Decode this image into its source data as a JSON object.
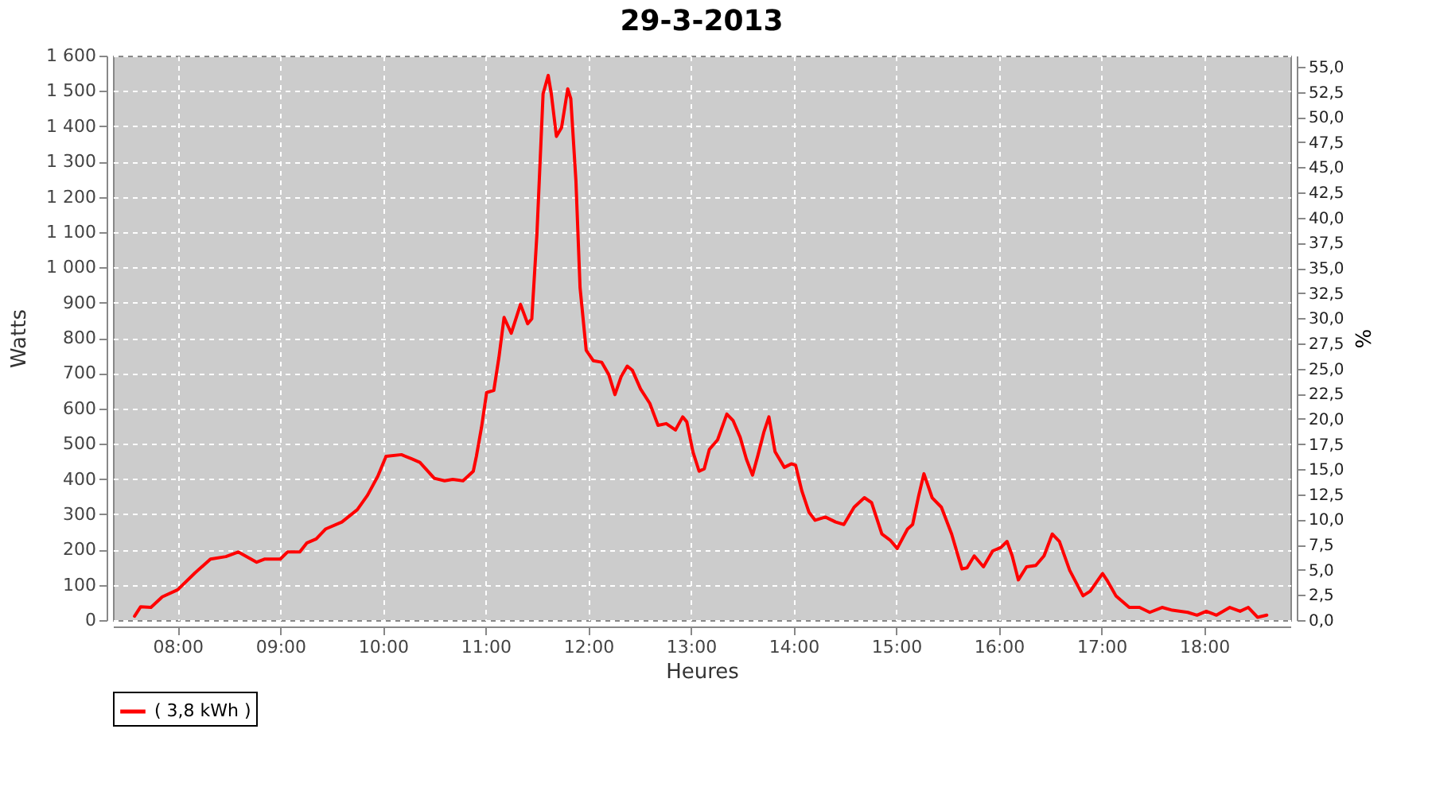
{
  "chart_data": {
    "type": "line",
    "title": "29-3-2013",
    "xlabel": "Heures",
    "ylabel": "Watts",
    "y2label": "%",
    "xlim": [
      7.37,
      18.84
    ],
    "xticks": [
      {
        "value": 8,
        "label": "08:00"
      },
      {
        "value": 9,
        "label": "09:00"
      },
      {
        "value": 10,
        "label": "10:00"
      },
      {
        "value": 11,
        "label": "11:00"
      },
      {
        "value": 12,
        "label": "12:00"
      },
      {
        "value": 13,
        "label": "13:00"
      },
      {
        "value": 14,
        "label": "14:00"
      },
      {
        "value": 15,
        "label": "15:00"
      },
      {
        "value": 16,
        "label": "16:00"
      },
      {
        "value": 17,
        "label": "17:00"
      },
      {
        "value": 18,
        "label": "18:00"
      }
    ],
    "ylim": [
      0,
      1600
    ],
    "yticks": [
      0,
      100,
      200,
      300,
      400,
      500,
      600,
      700,
      800,
      900,
      {
        "value": 1000,
        "label": "1 000"
      },
      {
        "value": 1100,
        "label": "1 100"
      },
      {
        "value": 1200,
        "label": "1 200"
      },
      {
        "value": 1300,
        "label": "1 300"
      },
      {
        "value": 1400,
        "label": "1 400"
      },
      {
        "value": 1500,
        "label": "1 500"
      },
      {
        "value": 1600,
        "label": "1 600"
      }
    ],
    "y2lim": [
      0,
      56.1
    ],
    "y2ticks": [
      {
        "value": 0,
        "label": "0,0"
      },
      {
        "value": 2.5,
        "label": "2,5"
      },
      {
        "value": 5,
        "label": "5,0"
      },
      {
        "value": 7.5,
        "label": "7,5"
      },
      {
        "value": 10,
        "label": "10,0"
      },
      {
        "value": 12.5,
        "label": "12,5"
      },
      {
        "value": 15,
        "label": "15,0"
      },
      {
        "value": 17.5,
        "label": "17,5"
      },
      {
        "value": 20,
        "label": "20,0"
      },
      {
        "value": 22.5,
        "label": "22,5"
      },
      {
        "value": 25,
        "label": "25,0"
      },
      {
        "value": 27.5,
        "label": "27,5"
      },
      {
        "value": 30,
        "label": "30,0"
      },
      {
        "value": 32.5,
        "label": "32,5"
      },
      {
        "value": 35,
        "label": "35,0"
      },
      {
        "value": 37.5,
        "label": "37,5"
      },
      {
        "value": 40,
        "label": "40,0"
      },
      {
        "value": 42.5,
        "label": "42,5"
      },
      {
        "value": 45,
        "label": "45,0"
      },
      {
        "value": 47.5,
        "label": "47,5"
      },
      {
        "value": 50,
        "label": "50,0"
      },
      {
        "value": 52.5,
        "label": "52,5"
      },
      {
        "value": 55,
        "label": "55,0"
      }
    ],
    "grid": true,
    "legend": "bottom",
    "marker": "none",
    "line_style": "solid",
    "series": [
      {
        "name": "( 3,8 kWh )",
        "color": "#ff0000",
        "x": [
          7.58,
          7.64,
          7.74,
          7.85,
          8.0,
          8.17,
          8.32,
          8.47,
          8.59,
          8.77,
          8.85,
          9.0,
          9.07,
          9.19,
          9.26,
          9.35,
          9.44,
          9.6,
          9.75,
          9.85,
          9.95,
          10.03,
          10.18,
          10.28,
          10.36,
          10.5,
          10.6,
          10.68,
          10.78,
          10.88,
          10.91,
          10.96,
          11.01,
          11.08,
          11.13,
          11.18,
          11.25,
          11.34,
          11.41,
          11.45,
          11.5,
          11.56,
          11.61,
          11.64,
          11.69,
          11.74,
          11.8,
          11.83,
          11.88,
          11.92,
          11.98,
          12.05,
          12.13,
          12.2,
          12.26,
          12.32,
          12.38,
          12.43,
          12.51,
          12.6,
          12.68,
          12.76,
          12.85,
          12.92,
          12.96,
          13.02,
          13.08,
          13.13,
          13.18,
          13.26,
          13.35,
          13.41,
          13.48,
          13.54,
          13.6,
          13.65,
          13.71,
          13.76,
          13.82,
          13.91,
          13.98,
          14.02,
          14.08,
          14.15,
          14.21,
          14.31,
          14.41,
          14.49,
          14.59,
          14.69,
          14.76,
          14.86,
          14.94,
          15.01,
          15.11,
          15.16,
          15.22,
          15.27,
          15.35,
          15.44,
          15.54,
          15.64,
          15.69,
          15.76,
          15.85,
          15.94,
          16.02,
          16.08,
          16.13,
          16.19,
          16.27,
          16.36,
          16.44,
          16.52,
          16.59,
          16.69,
          16.82,
          16.89,
          17.01,
          17.06,
          17.14,
          17.27,
          17.37,
          17.47,
          17.59,
          17.69,
          17.84,
          17.93,
          18.02,
          18.12,
          18.25,
          18.35,
          18.43,
          18.52,
          18.61
        ],
        "values": [
          11,
          38,
          36,
          66,
          86,
          134,
          173,
          180,
          193,
          164,
          173,
          173,
          193,
          193,
          219,
          230,
          258,
          278,
          313,
          354,
          408,
          464,
          469,
          457,
          447,
          402,
          395,
          399,
          395,
          422,
          464,
          546,
          645,
          651,
          745,
          858,
          813,
          895,
          840,
          854,
          1094,
          1492,
          1544,
          1492,
          1371,
          1396,
          1506,
          1478,
          1245,
          943,
          765,
          735,
          731,
          696,
          639,
          690,
          720,
          708,
          655,
          614,
          552,
          557,
          539,
          576,
          562,
          477,
          422,
          429,
          484,
          511,
          584,
          566,
          518,
          457,
          411,
          464,
          532,
          576,
          477,
          433,
          443,
          439,
          367,
          306,
          283,
          292,
          278,
          271,
          320,
          347,
          333,
          244,
          227,
          203,
          258,
          271,
          354,
          415,
          347,
          320,
          244,
          145,
          148,
          182,
          151,
          196,
          206,
          223,
          182,
          114,
          151,
          155,
          182,
          244,
          223,
          141,
          69,
          82,
          132,
          110,
          69,
          36,
          36,
          22,
          36,
          28,
          22,
          14,
          25,
          14,
          36,
          25,
          36,
          8,
          14
        ]
      }
    ]
  }
}
